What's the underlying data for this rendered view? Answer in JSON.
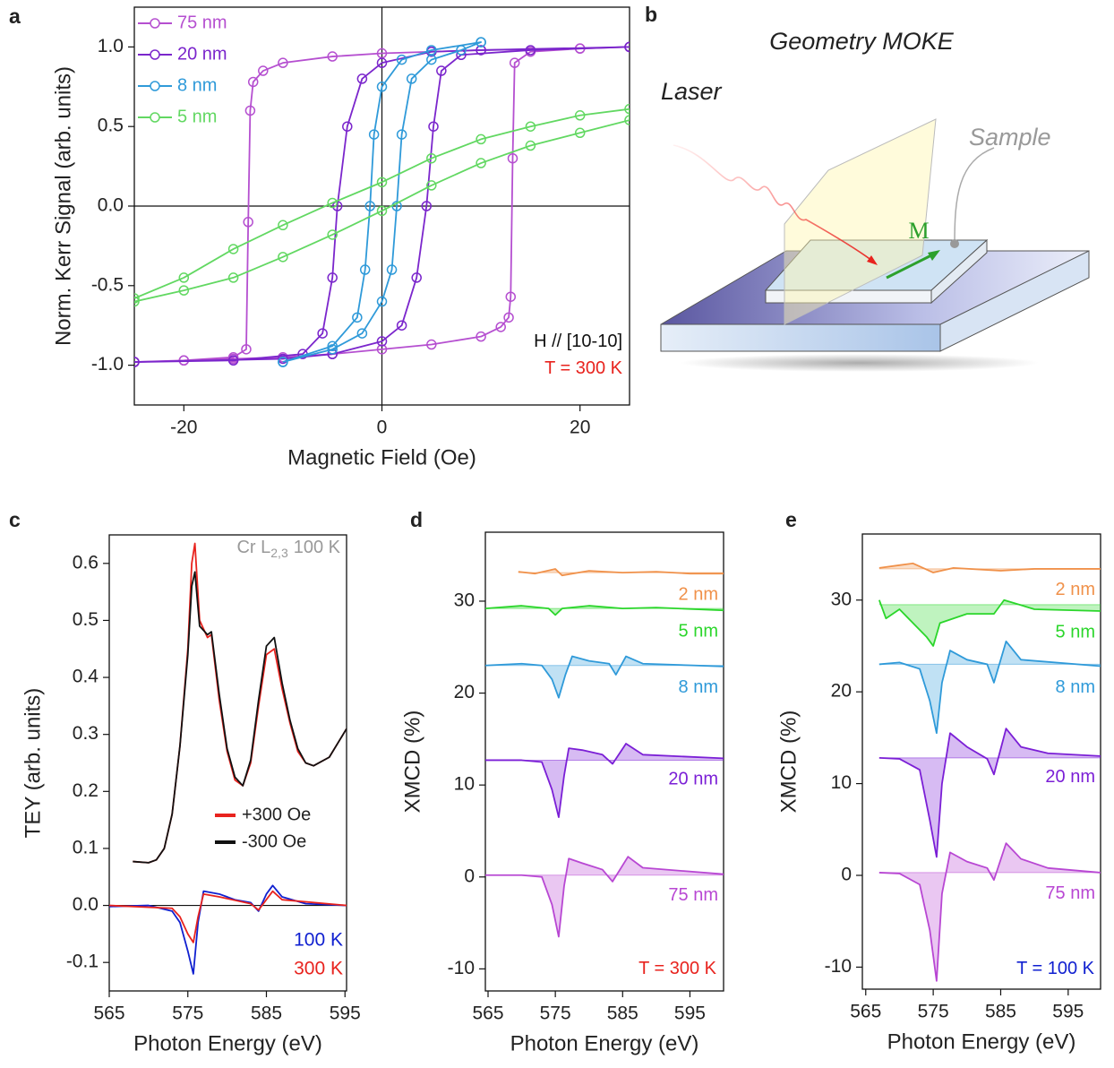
{
  "chart_data": [
    {
      "type": "line",
      "panel_label": "a",
      "x_label": "Magnetic Field (Oe)",
      "y_label": "Norm. Kerr Signal (arb. units)",
      "xlim": [
        -25,
        25
      ],
      "ylim": [
        -1.25,
        1.25
      ],
      "xticks": [
        -20,
        0,
        20
      ],
      "yticks": [
        {
          "value": -1,
          "label": "-1.0"
        },
        -0.5,
        {
          "value": 0,
          "label": "0.0"
        },
        0.5,
        {
          "value": 1,
          "label": "1.0"
        }
      ],
      "zero_lines": true,
      "markers": "circle",
      "legend": "upper left",
      "annotations": [
        {
          "text": "H // [10-10]",
          "color": "#111111"
        },
        {
          "text": "T = 300 K",
          "color": "#e8231e"
        }
      ],
      "series": [
        {
          "name": "75 nm",
          "color": "#b54fd0",
          "x": [
            -25,
            -20,
            -15,
            -10,
            -5,
            0,
            5,
            10,
            12,
            12.8,
            13,
            13.2,
            13.4,
            15,
            20,
            25,
            25,
            20,
            10,
            5,
            0,
            -5,
            -10,
            -12,
            -13,
            -13.3,
            -13.5,
            -13.7,
            -15,
            -20,
            -25
          ],
          "values": [
            -0.98,
            -0.97,
            -0.96,
            -0.95,
            -0.93,
            -0.9,
            -0.87,
            -0.82,
            -0.76,
            -0.7,
            -0.57,
            0.3,
            0.9,
            0.97,
            0.99,
            1.0,
            1.0,
            0.99,
            0.98,
            0.97,
            0.96,
            0.94,
            0.9,
            0.85,
            0.78,
            0.6,
            -0.1,
            -0.9,
            -0.95,
            -0.97,
            -0.98
          ]
        },
        {
          "name": "20 nm",
          "color": "#7b26cc",
          "x": [
            -25,
            -10,
            -5,
            0,
            2,
            3.5,
            4.5,
            5.2,
            6,
            8,
            15,
            25,
            25,
            10,
            5,
            0,
            -2,
            -3.5,
            -4.5,
            -5,
            -6,
            -8,
            -15,
            -25
          ],
          "values": [
            -0.98,
            -0.96,
            -0.93,
            -0.85,
            -0.75,
            -0.45,
            0,
            0.5,
            0.85,
            0.95,
            0.98,
            1.0,
            1.0,
            0.98,
            0.97,
            0.9,
            0.8,
            0.5,
            0,
            -0.45,
            -0.8,
            -0.93,
            -0.97,
            -0.98
          ]
        },
        {
          "name": "8 nm",
          "color": "#2f9ad9",
          "x": [
            -10,
            -5,
            -2,
            0,
            1,
            1.5,
            2,
            3,
            5,
            8,
            10,
            10,
            5,
            2,
            0,
            -0.8,
            -1.2,
            -1.7,
            -2.5,
            -5,
            -10
          ],
          "values": [
            -0.98,
            -0.9,
            -0.8,
            -0.6,
            -0.4,
            0,
            0.45,
            0.8,
            0.92,
            0.98,
            1.03,
            1.03,
            0.98,
            0.92,
            0.75,
            0.45,
            0,
            -0.4,
            -0.7,
            -0.88,
            -0.98
          ]
        },
        {
          "name": "5 nm",
          "color": "#62d862",
          "x": [
            -25,
            -20,
            -15,
            -10,
            -5,
            0,
            5,
            10,
            15,
            20,
            25,
            25,
            20,
            15,
            10,
            5,
            0,
            -5,
            -10,
            -15,
            -20,
            -25
          ],
          "values": [
            -0.6,
            -0.53,
            -0.45,
            -0.32,
            -0.18,
            -0.03,
            0.13,
            0.27,
            0.38,
            0.46,
            0.54,
            0.61,
            0.57,
            0.5,
            0.42,
            0.3,
            0.15,
            0.02,
            -0.12,
            -0.27,
            -0.45,
            -0.58
          ]
        }
      ]
    },
    {
      "type": "line",
      "panel_label": "c",
      "x_label": "Photon Energy (eV)",
      "y_label": "TEY (arb. units)",
      "xlim": [
        565,
        595.2
      ],
      "ylim": [
        -0.15,
        0.65
      ],
      "xticks": [
        565,
        575,
        585,
        595
      ],
      "yticks": [
        -0.1,
        {
          "value": 0,
          "label": "0.0"
        },
        0.1,
        0.2,
        0.3,
        0.4,
        0.5,
        0.6
      ],
      "zero_lines": true,
      "legend": "center right",
      "annotations": [
        {
          "text": "Cr L",
          "subscript": "2,3",
          "suffix": "100 K",
          "color": "#999999"
        }
      ],
      "series": [
        {
          "name": "+300 Oe",
          "color": "#e8231e",
          "legend_style": "line",
          "x": [
            568,
            570,
            571,
            572,
            573,
            574,
            575,
            575.5,
            575.9,
            576.5,
            577.5,
            578,
            579,
            580,
            581,
            582,
            583,
            584,
            585,
            586,
            587,
            588,
            589,
            590,
            591,
            593,
            595.2
          ],
          "values": [
            0.077,
            0.075,
            0.08,
            0.1,
            0.16,
            0.28,
            0.45,
            0.6,
            0.635,
            0.5,
            0.47,
            0.475,
            0.36,
            0.27,
            0.22,
            0.21,
            0.25,
            0.35,
            0.44,
            0.45,
            0.38,
            0.32,
            0.27,
            0.25,
            0.245,
            0.26,
            0.31
          ]
        },
        {
          "name": "-300  Oe",
          "color": "#111111",
          "legend_style": "line",
          "x": [
            568,
            570,
            571,
            572,
            573,
            574,
            575,
            575.5,
            575.9,
            576.5,
            577.5,
            578,
            579,
            580,
            581,
            582,
            583,
            584,
            585,
            586,
            587,
            588,
            589,
            590,
            591,
            593,
            595.2
          ],
          "values": [
            0.077,
            0.075,
            0.08,
            0.1,
            0.16,
            0.28,
            0.44,
            0.56,
            0.585,
            0.49,
            0.475,
            0.48,
            0.37,
            0.275,
            0.225,
            0.21,
            0.255,
            0.36,
            0.455,
            0.47,
            0.39,
            0.325,
            0.275,
            0.25,
            0.245,
            0.26,
            0.31
          ]
        },
        {
          "name": "100 K",
          "color": "#1020d0",
          "legend_style": "text",
          "x": [
            565,
            570,
            573,
            574,
            575,
            575.7,
            576.3,
            577,
            579,
            581,
            583,
            584,
            585,
            585.8,
            587,
            590,
            595.2
          ],
          "values": [
            -0.002,
            0,
            -0.01,
            -0.03,
            -0.08,
            -0.12,
            -0.03,
            0.025,
            0.02,
            0.01,
            0.005,
            -0.01,
            0.02,
            0.035,
            0.015,
            0.003,
            0
          ]
        },
        {
          "name": "300 K",
          "color": "#e8231e",
          "legend_style": "text",
          "x": [
            565,
            573,
            574,
            575,
            575.7,
            576.3,
            577,
            579,
            583,
            584,
            585.8,
            587,
            595.2
          ],
          "values": [
            0,
            -0.005,
            -0.02,
            -0.05,
            -0.065,
            -0.02,
            0.02,
            0.015,
            0.003,
            -0.008,
            0.025,
            0.01,
            0
          ]
        }
      ]
    },
    {
      "type": "line",
      "panel_label": "d",
      "x_label": "Photon Energy (eV)",
      "y_label": "XMCD (%)",
      "xlim": [
        564.6,
        600
      ],
      "ylim": [
        -12.4,
        37.5
      ],
      "xticks": [
        565,
        575,
        585,
        595
      ],
      "yticks": [
        -10,
        0,
        10,
        20,
        30
      ],
      "zero_lines": false,
      "legend": "series labels",
      "annotations": [
        {
          "text": "T = 300 K",
          "color": "#e8231e"
        }
      ],
      "series": [
        {
          "name": "2 nm",
          "color": "#f0914a",
          "offset": 33.1,
          "x": [
            569.5,
            572,
            575,
            576,
            580,
            585,
            590,
            595,
            600
          ],
          "values": [
            33.2,
            33,
            33.5,
            32.8,
            33.3,
            33.1,
            33.2,
            33,
            33
          ]
        },
        {
          "name": "5 nm",
          "color": "#2bd62b",
          "offset": 29.2,
          "x": [
            564.6,
            570,
            574,
            575,
            576,
            580,
            585,
            590,
            600
          ],
          "values": [
            29.2,
            29.5,
            29.2,
            28.5,
            29.2,
            29.5,
            29.2,
            29.3,
            29
          ]
        },
        {
          "name": "8 nm",
          "color": "#2f9ad9",
          "offset": 23,
          "x": [
            564.6,
            570,
            573,
            574.5,
            575.5,
            576.5,
            577.5,
            580,
            583,
            584,
            585.5,
            588,
            600
          ],
          "values": [
            23,
            23.2,
            23,
            21.5,
            19.5,
            22,
            24,
            23.5,
            23.2,
            22,
            24,
            23.2,
            22.9
          ]
        },
        {
          "name": "20 nm",
          "color": "#7b1fd6",
          "offset": 12.7,
          "x": [
            564.6,
            570,
            573,
            574.5,
            575.5,
            576.3,
            577,
            579,
            582,
            583.5,
            585.5,
            588,
            600
          ],
          "values": [
            12.7,
            12.7,
            12.5,
            9.5,
            6.5,
            11,
            14,
            13.8,
            13.3,
            12.3,
            14.5,
            13.3,
            12.9
          ]
        },
        {
          "name": "75 nm",
          "color": "#b847d3",
          "offset": 0.2,
          "x": [
            564.6,
            570,
            573,
            574.5,
            575.5,
            576.3,
            577,
            579,
            582,
            583.5,
            585.8,
            588,
            600
          ],
          "values": [
            0.2,
            0.2,
            0,
            -3,
            -6.5,
            -1,
            2,
            1.5,
            0.8,
            -0.5,
            2.2,
            1,
            0.3
          ]
        }
      ]
    },
    {
      "type": "line",
      "panel_label": "e",
      "x_label": "Photon Energy (eV)",
      "y_label": "XMCD (%)",
      "xlim": [
        564.5,
        599.8
      ],
      "ylim": [
        -12.4,
        37.2
      ],
      "xticks": [
        565,
        575,
        585,
        595
      ],
      "yticks": [
        -10,
        0,
        10,
        20,
        30
      ],
      "zero_lines": false,
      "legend": "series labels",
      "annotations": [
        {
          "text": "T = 100 K",
          "color": "#1020d0"
        }
      ],
      "series": [
        {
          "name": "2 nm",
          "color": "#f0914a",
          "offset": 33.4,
          "x": [
            567,
            570,
            572,
            575,
            578,
            585,
            590,
            599.8
          ],
          "values": [
            33.5,
            33.8,
            34,
            33,
            33.5,
            33.2,
            33.4,
            33.4
          ]
        },
        {
          "name": "5 nm",
          "color": "#2bd62b",
          "offset": 29.5,
          "x": [
            567,
            568,
            570,
            572,
            574,
            575,
            576,
            578,
            580,
            584,
            585.5,
            590,
            599.8
          ],
          "values": [
            30,
            28,
            29,
            27.5,
            26,
            25,
            27.5,
            28,
            28.5,
            28.5,
            30,
            29,
            28.8
          ]
        },
        {
          "name": "8 nm",
          "color": "#2f9ad9",
          "offset": 23,
          "x": [
            567,
            570,
            573,
            574.5,
            575.5,
            576.3,
            577.5,
            580,
            583,
            584,
            585.8,
            588,
            599.8
          ],
          "values": [
            23,
            23.2,
            22.5,
            19,
            15.5,
            21,
            24.5,
            23.5,
            23,
            21,
            25.5,
            23.5,
            22.8
          ]
        },
        {
          "name": "20 nm",
          "color": "#7b1fd6",
          "offset": 12.8,
          "x": [
            567,
            570,
            573,
            574.5,
            575.5,
            576.3,
            577.5,
            580,
            583,
            584,
            585.8,
            588,
            592,
            599.8
          ],
          "values": [
            12.8,
            12.7,
            11.5,
            6,
            2,
            10,
            15.5,
            14,
            12.7,
            11,
            16,
            14,
            13.3,
            13
          ]
        },
        {
          "name": "75 nm",
          "color": "#b847d3",
          "offset": 0.3,
          "x": [
            567,
            570,
            573,
            574.5,
            575.5,
            576.3,
            577.5,
            580,
            583,
            584,
            585.8,
            588,
            592,
            599.8
          ],
          "values": [
            0.3,
            0.2,
            -1,
            -6,
            -11.5,
            -2,
            2.5,
            1.5,
            0.8,
            -0.5,
            3.5,
            1.8,
            0.8,
            0.3
          ]
        }
      ]
    }
  ],
  "diagram": {
    "panel_label": "b",
    "title": "Geometry MOKE",
    "laser": "Laser",
    "sample": "Sample",
    "magnetization": "M"
  }
}
